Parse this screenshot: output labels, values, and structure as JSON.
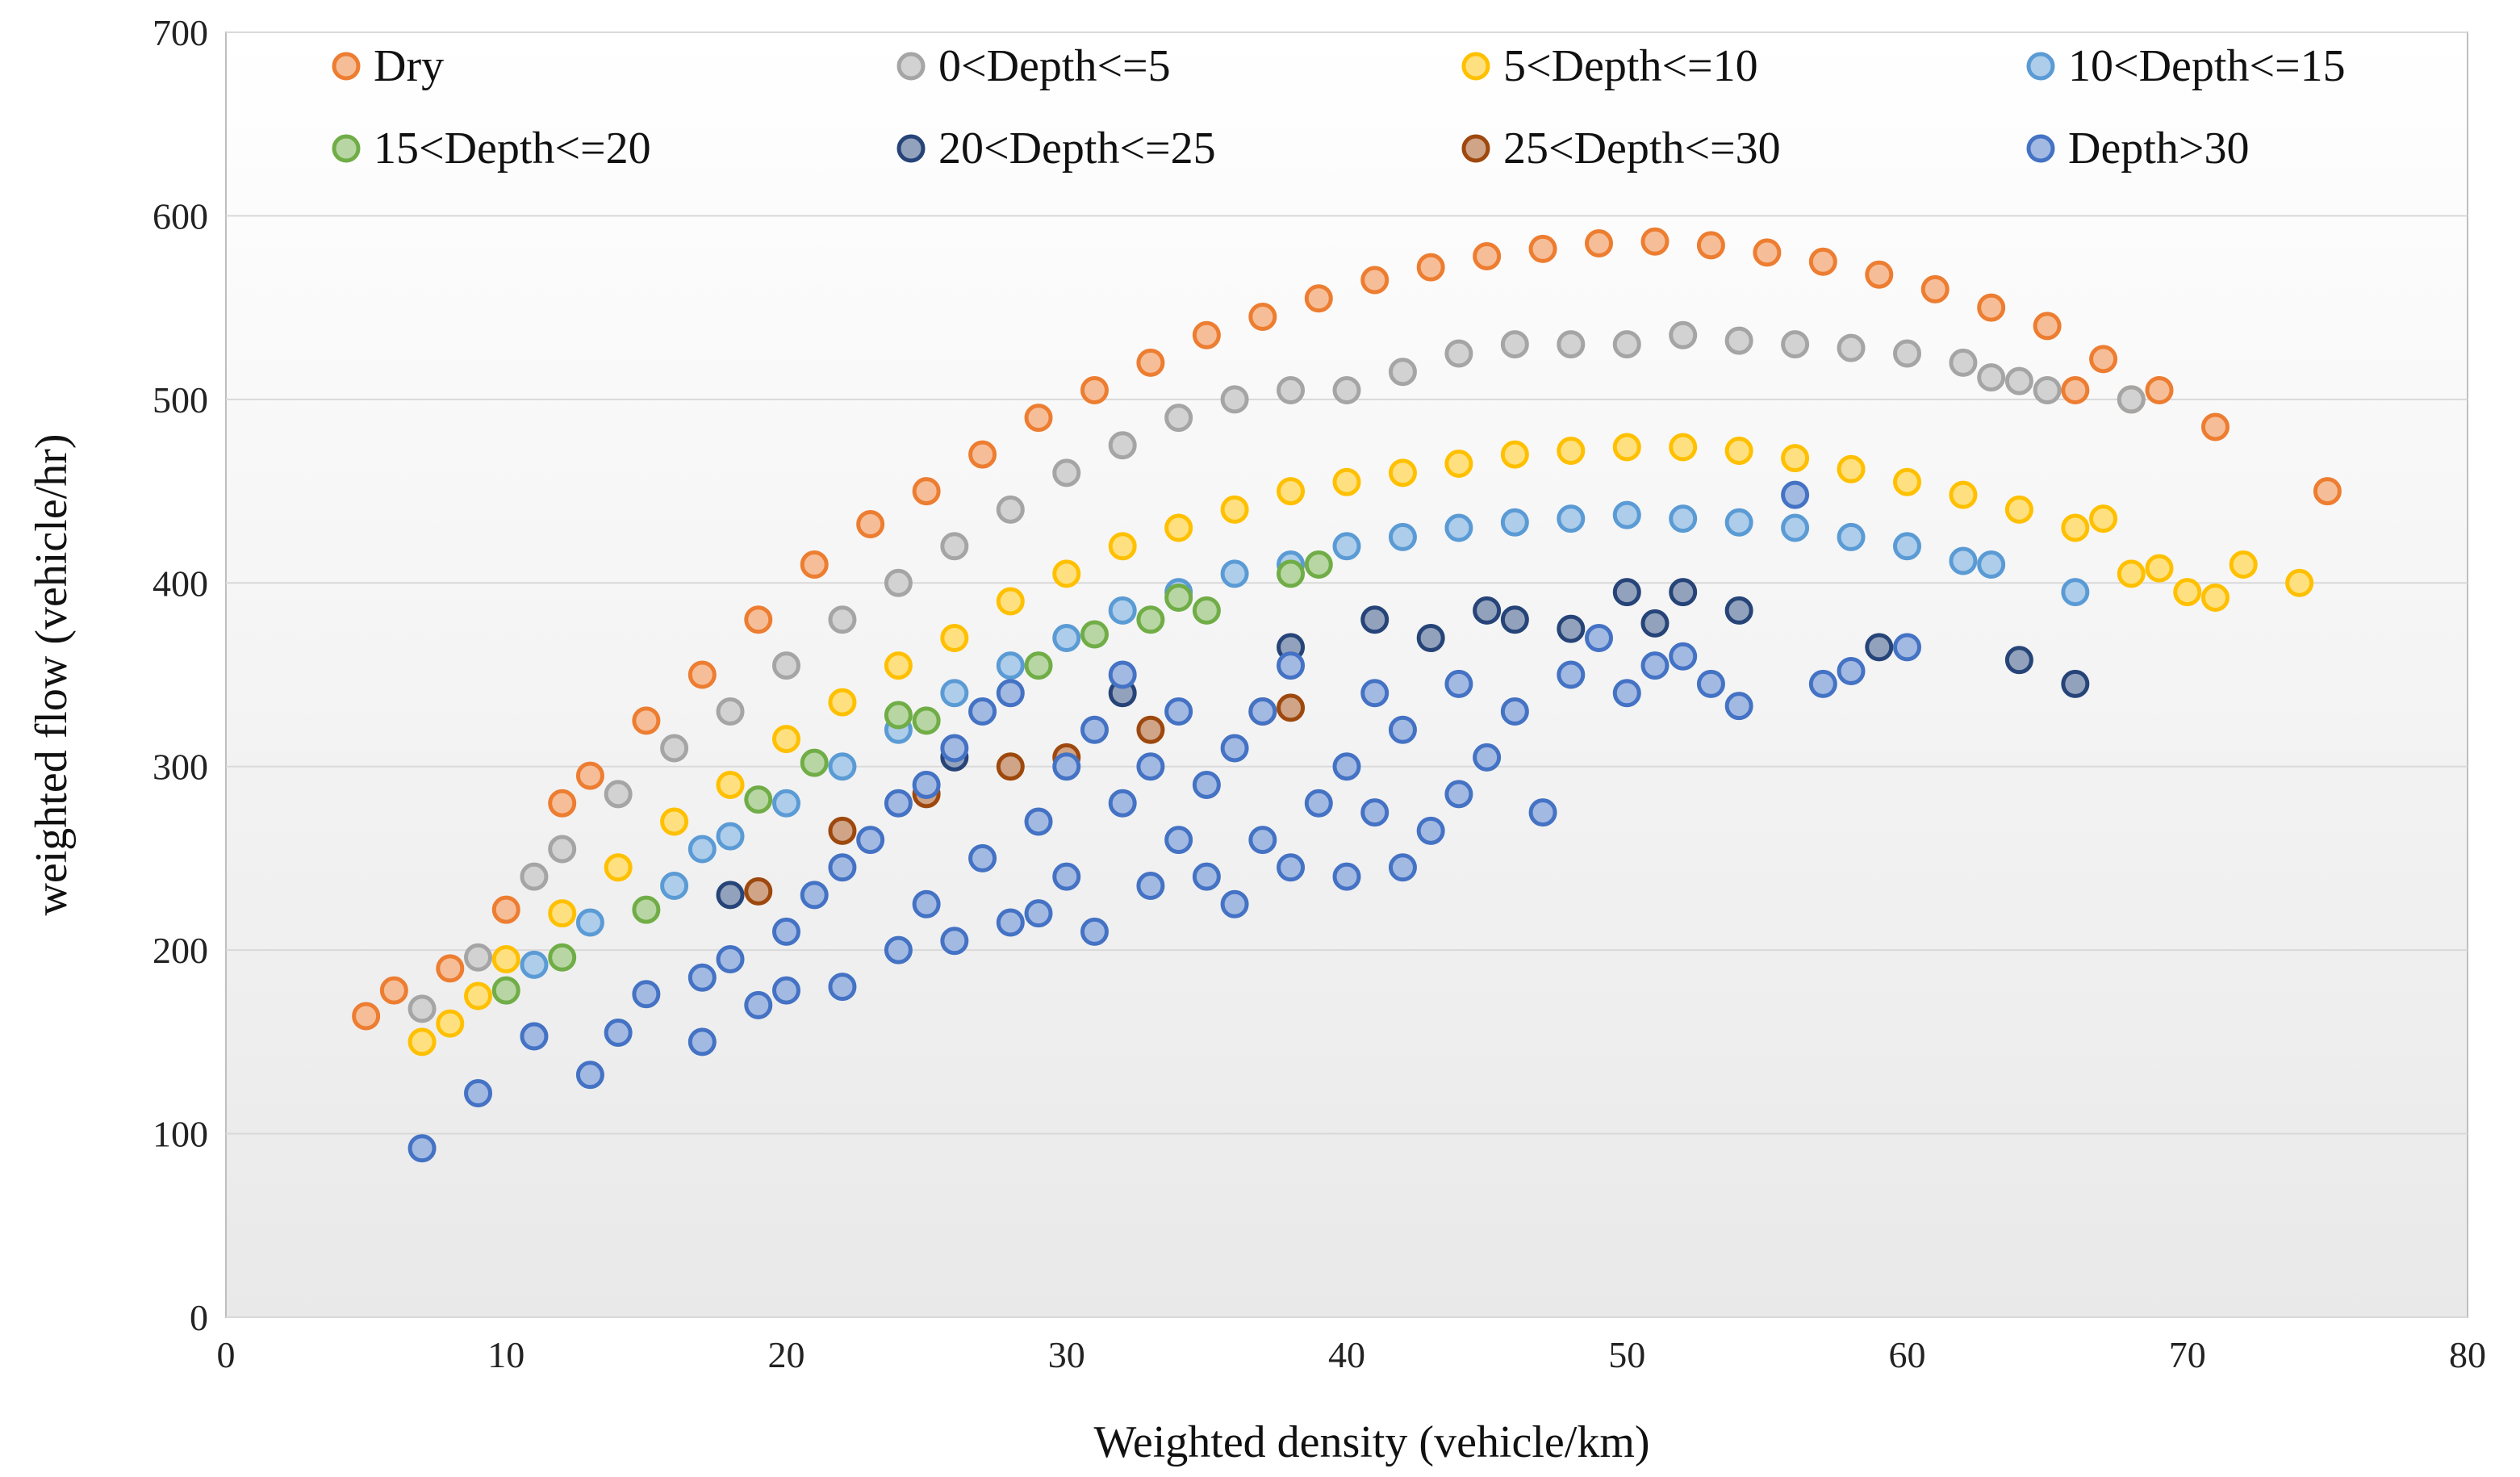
{
  "chart_data": {
    "type": "scatter",
    "title": "",
    "xlabel": "Weighted  density (vehicle/km)",
    "ylabel": "weighted flow (vehicle/hr)",
    "xlim": [
      0,
      80
    ],
    "ylim": [
      0,
      700
    ],
    "x_ticks": [
      "0",
      "10",
      "20",
      "30",
      "40",
      "50",
      "60",
      "70",
      "80"
    ],
    "y_ticks": [
      "0",
      "100",
      "200",
      "300",
      "400",
      "500",
      "600",
      "700"
    ],
    "grid": "horizontal",
    "legend_position": "top, inside plot area, 4 columns",
    "series": [
      {
        "name": "Dry",
        "color": "#ED7D31",
        "points": [
          [
            5,
            164
          ],
          [
            6,
            178
          ],
          [
            8,
            190
          ],
          [
            10,
            222
          ],
          [
            12,
            280
          ],
          [
            13,
            295
          ],
          [
            15,
            325
          ],
          [
            17,
            350
          ],
          [
            19,
            380
          ],
          [
            21,
            410
          ],
          [
            23,
            432
          ],
          [
            25,
            450
          ],
          [
            27,
            470
          ],
          [
            29,
            490
          ],
          [
            31,
            505
          ],
          [
            33,
            520
          ],
          [
            35,
            535
          ],
          [
            37,
            545
          ],
          [
            39,
            555
          ],
          [
            41,
            565
          ],
          [
            43,
            572
          ],
          [
            45,
            578
          ],
          [
            47,
            582
          ],
          [
            49,
            585
          ],
          [
            51,
            586
          ],
          [
            53,
            584
          ],
          [
            55,
            580
          ],
          [
            57,
            575
          ],
          [
            59,
            568
          ],
          [
            61,
            560
          ],
          [
            63,
            550
          ],
          [
            65,
            540
          ],
          [
            66,
            505
          ],
          [
            67,
            522
          ],
          [
            68,
            500
          ],
          [
            69,
            505
          ],
          [
            71,
            485
          ],
          [
            75,
            450
          ]
        ]
      },
      {
        "name": "0<Depth<=5",
        "color": "#A5A5A5",
        "points": [
          [
            7,
            168
          ],
          [
            9,
            196
          ],
          [
            11,
            240
          ],
          [
            12,
            255
          ],
          [
            14,
            285
          ],
          [
            16,
            310
          ],
          [
            18,
            330
          ],
          [
            20,
            355
          ],
          [
            22,
            380
          ],
          [
            24,
            400
          ],
          [
            26,
            420
          ],
          [
            28,
            440
          ],
          [
            30,
            460
          ],
          [
            32,
            475
          ],
          [
            34,
            490
          ],
          [
            36,
            500
          ],
          [
            38,
            505
          ],
          [
            40,
            505
          ],
          [
            42,
            515
          ],
          [
            44,
            525
          ],
          [
            46,
            530
          ],
          [
            48,
            530
          ],
          [
            50,
            530
          ],
          [
            52,
            535
          ],
          [
            54,
            532
          ],
          [
            56,
            530
          ],
          [
            58,
            528
          ],
          [
            60,
            525
          ],
          [
            62,
            520
          ],
          [
            63,
            512
          ],
          [
            64,
            510
          ],
          [
            65,
            505
          ],
          [
            68,
            500
          ]
        ]
      },
      {
        "name": "5<Depth<=10",
        "color": "#FFC000",
        "points": [
          [
            7,
            150
          ],
          [
            8,
            160
          ],
          [
            9,
            175
          ],
          [
            10,
            195
          ],
          [
            12,
            220
          ],
          [
            14,
            245
          ],
          [
            16,
            270
          ],
          [
            18,
            290
          ],
          [
            20,
            315
          ],
          [
            22,
            335
          ],
          [
            24,
            355
          ],
          [
            26,
            370
          ],
          [
            28,
            390
          ],
          [
            30,
            405
          ],
          [
            32,
            420
          ],
          [
            34,
            430
          ],
          [
            36,
            440
          ],
          [
            38,
            450
          ],
          [
            40,
            455
          ],
          [
            42,
            460
          ],
          [
            44,
            465
          ],
          [
            46,
            470
          ],
          [
            48,
            472
          ],
          [
            50,
            474
          ],
          [
            52,
            474
          ],
          [
            54,
            472
          ],
          [
            56,
            468
          ],
          [
            58,
            462
          ],
          [
            60,
            455
          ],
          [
            62,
            448
          ],
          [
            64,
            440
          ],
          [
            66,
            430
          ],
          [
            67,
            435
          ],
          [
            68,
            405
          ],
          [
            69,
            408
          ],
          [
            70,
            395
          ],
          [
            71,
            392
          ],
          [
            72,
            410
          ],
          [
            74,
            400
          ]
        ]
      },
      {
        "name": "10<Depth<=15",
        "color": "#5B9BD5",
        "points": [
          [
            11,
            192
          ],
          [
            13,
            215
          ],
          [
            16,
            235
          ],
          [
            17,
            255
          ],
          [
            18,
            262
          ],
          [
            20,
            280
          ],
          [
            22,
            300
          ],
          [
            24,
            320
          ],
          [
            26,
            340
          ],
          [
            28,
            355
          ],
          [
            30,
            370
          ],
          [
            32,
            385
          ],
          [
            34,
            395
          ],
          [
            36,
            405
          ],
          [
            38,
            410
          ],
          [
            40,
            420
          ],
          [
            42,
            425
          ],
          [
            44,
            430
          ],
          [
            46,
            433
          ],
          [
            48,
            435
          ],
          [
            50,
            437
          ],
          [
            52,
            435
          ],
          [
            54,
            433
          ],
          [
            56,
            430
          ],
          [
            58,
            425
          ],
          [
            60,
            420
          ],
          [
            62,
            412
          ],
          [
            63,
            410
          ],
          [
            66,
            395
          ]
        ]
      },
      {
        "name": "15<Depth<=20",
        "color": "#70AD47",
        "points": [
          [
            10,
            178
          ],
          [
            12,
            196
          ],
          [
            15,
            222
          ],
          [
            19,
            282
          ],
          [
            21,
            302
          ],
          [
            24,
            328
          ],
          [
            25,
            325
          ],
          [
            29,
            355
          ],
          [
            31,
            372
          ],
          [
            33,
            380
          ],
          [
            34,
            392
          ],
          [
            35,
            385
          ],
          [
            38,
            405
          ],
          [
            39,
            410
          ]
        ]
      },
      {
        "name": "20<Depth<=25",
        "color": "#264478",
        "points": [
          [
            18,
            230
          ],
          [
            26,
            305
          ],
          [
            32,
            340
          ],
          [
            38,
            365
          ],
          [
            41,
            380
          ],
          [
            43,
            370
          ],
          [
            45,
            385
          ],
          [
            46,
            380
          ],
          [
            48,
            375
          ],
          [
            50,
            395
          ],
          [
            51,
            378
          ],
          [
            52,
            395
          ],
          [
            54,
            385
          ],
          [
            59,
            365
          ],
          [
            64,
            358
          ],
          [
            66,
            345
          ]
        ]
      },
      {
        "name": "25<Depth<=30",
        "color": "#9E480E",
        "points": [
          [
            19,
            232
          ],
          [
            22,
            265
          ],
          [
            25,
            285
          ],
          [
            28,
            300
          ],
          [
            30,
            305
          ],
          [
            33,
            320
          ],
          [
            37,
            330
          ],
          [
            38,
            332
          ]
        ]
      },
      {
        "name": "Depth>30",
        "color": "#4472C4",
        "points": [
          [
            7,
            92
          ],
          [
            9,
            122
          ],
          [
            11,
            153
          ],
          [
            13,
            132
          ],
          [
            14,
            155
          ],
          [
            15,
            176
          ],
          [
            17,
            150
          ],
          [
            17,
            185
          ],
          [
            18,
            195
          ],
          [
            19,
            170
          ],
          [
            20,
            178
          ],
          [
            20,
            210
          ],
          [
            21,
            230
          ],
          [
            22,
            180
          ],
          [
            22,
            245
          ],
          [
            23,
            260
          ],
          [
            24,
            200
          ],
          [
            24,
            280
          ],
          [
            25,
            290
          ],
          [
            25,
            225
          ],
          [
            26,
            310
          ],
          [
            26,
            205
          ],
          [
            27,
            330
          ],
          [
            27,
            250
          ],
          [
            28,
            215
          ],
          [
            28,
            340
          ],
          [
            29,
            270
          ],
          [
            29,
            220
          ],
          [
            30,
            300
          ],
          [
            30,
            240
          ],
          [
            31,
            320
          ],
          [
            31,
            210
          ],
          [
            32,
            280
          ],
          [
            32,
            350
          ],
          [
            33,
            235
          ],
          [
            33,
            300
          ],
          [
            34,
            260
          ],
          [
            34,
            330
          ],
          [
            35,
            240
          ],
          [
            35,
            290
          ],
          [
            36,
            225
          ],
          [
            36,
            310
          ],
          [
            37,
            260
          ],
          [
            37,
            330
          ],
          [
            38,
            245
          ],
          [
            38,
            355
          ],
          [
            39,
            280
          ],
          [
            40,
            300
          ],
          [
            40,
            240
          ],
          [
            41,
            275
          ],
          [
            41,
            340
          ],
          [
            42,
            245
          ],
          [
            42,
            320
          ],
          [
            43,
            265
          ],
          [
            44,
            285
          ],
          [
            44,
            345
          ],
          [
            45,
            305
          ],
          [
            46,
            330
          ],
          [
            47,
            275
          ],
          [
            48,
            350
          ],
          [
            49,
            370
          ],
          [
            50,
            340
          ],
          [
            51,
            355
          ],
          [
            52,
            360
          ],
          [
            53,
            345
          ],
          [
            54,
            333
          ],
          [
            56,
            448
          ],
          [
            57,
            345
          ],
          [
            58,
            352
          ],
          [
            60,
            365
          ]
        ]
      }
    ]
  }
}
